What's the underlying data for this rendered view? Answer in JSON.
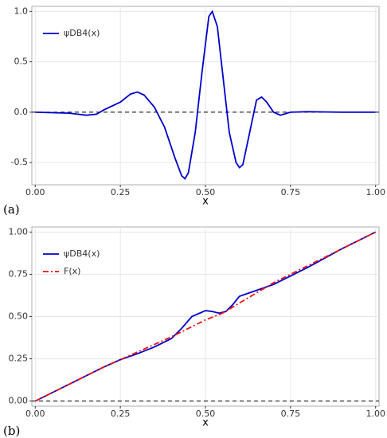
{
  "chart_data": [
    {
      "type": "line",
      "panel_label": "(a)",
      "x_label": "x",
      "legend": "top-left",
      "grid": true,
      "hlines": [
        0
      ],
      "xlim": [
        -0.01,
        1.01
      ],
      "ylim": [
        -0.72,
        1.05
      ],
      "xticks": [
        {
          "value": 0,
          "label": "0.00"
        },
        {
          "value": 0.25,
          "label": "0.25"
        },
        {
          "value": 0.5,
          "label": "0.50"
        },
        {
          "value": 0.75,
          "label": "0.75"
        },
        {
          "value": 1,
          "label": "1.00"
        }
      ],
      "yticks": [
        {
          "value": -0.5,
          "label": "-0.5"
        },
        {
          "value": 0,
          "label": "0.0"
        },
        {
          "value": 0.5,
          "label": "0.5"
        },
        {
          "value": 1,
          "label": "1.0"
        }
      ],
      "series": [
        {
          "name": "ψDB4(x)",
          "color": "#0000cc",
          "dash": "solid",
          "x": [
            0,
            0.05,
            0.1,
            0.15,
            0.18,
            0.2,
            0.25,
            0.28,
            0.3,
            0.32,
            0.35,
            0.38,
            0.41,
            0.43,
            0.44,
            0.45,
            0.47,
            0.49,
            0.51,
            0.52,
            0.535,
            0.55,
            0.57,
            0.59,
            0.6,
            0.61,
            0.63,
            0.65,
            0.665,
            0.68,
            0.7,
            0.72,
            0.75,
            0.8,
            0.9,
            0.95,
            1
          ],
          "values": [
            0,
            -0.005,
            -0.01,
            -0.03,
            -0.02,
            0.02,
            0.1,
            0.18,
            0.2,
            0.17,
            0.05,
            -0.15,
            -0.45,
            -0.63,
            -0.66,
            -0.6,
            -0.2,
            0.4,
            0.95,
            1.0,
            0.85,
            0.4,
            -0.2,
            -0.5,
            -0.55,
            -0.52,
            -0.2,
            0.12,
            0.15,
            0.1,
            0.0,
            -0.03,
            0.0,
            0.005,
            0,
            0,
            0
          ]
        }
      ]
    },
    {
      "type": "line",
      "panel_label": "(b)",
      "x_label": "x",
      "legend": "top-left",
      "grid": true,
      "hlines": [
        0
      ],
      "xlim": [
        -0.01,
        1.01
      ],
      "ylim": [
        -0.03,
        1.03
      ],
      "xticks": [
        {
          "value": 0,
          "label": "0.00"
        },
        {
          "value": 0.25,
          "label": "0.25"
        },
        {
          "value": 0.5,
          "label": "0.50"
        },
        {
          "value": 0.75,
          "label": "0.75"
        },
        {
          "value": 1,
          "label": "1.00"
        }
      ],
      "yticks": [
        {
          "value": 0,
          "label": "0.00"
        },
        {
          "value": 0.25,
          "label": "0.25"
        },
        {
          "value": 0.5,
          "label": "0.50"
        },
        {
          "value": 0.75,
          "label": "0.75"
        },
        {
          "value": 1,
          "label": "1.00"
        }
      ],
      "series": [
        {
          "name": "ψDB4(x)",
          "color": "#0000cc",
          "dash": "solid",
          "x": [
            0,
            0.1,
            0.2,
            0.25,
            0.3,
            0.35,
            0.4,
            0.43,
            0.46,
            0.5,
            0.52,
            0.54,
            0.56,
            0.58,
            0.6,
            0.65,
            0.7,
            0.75,
            0.8,
            0.9,
            1
          ],
          "values": [
            0,
            0.1,
            0.2,
            0.245,
            0.28,
            0.32,
            0.37,
            0.43,
            0.5,
            0.535,
            0.53,
            0.52,
            0.53,
            0.57,
            0.62,
            0.655,
            0.69,
            0.74,
            0.79,
            0.9,
            1.0
          ]
        },
        {
          "name": "F(x)",
          "color": "#ee1111",
          "dash": "dashdot",
          "x": [
            0,
            0.1,
            0.2,
            0.3,
            0.4,
            0.5,
            0.55,
            0.6,
            0.65,
            0.7,
            0.8,
            0.9,
            1
          ],
          "values": [
            0,
            0.1,
            0.2,
            0.29,
            0.38,
            0.48,
            0.52,
            0.58,
            0.64,
            0.7,
            0.8,
            0.9,
            1.0
          ]
        }
      ]
    }
  ]
}
